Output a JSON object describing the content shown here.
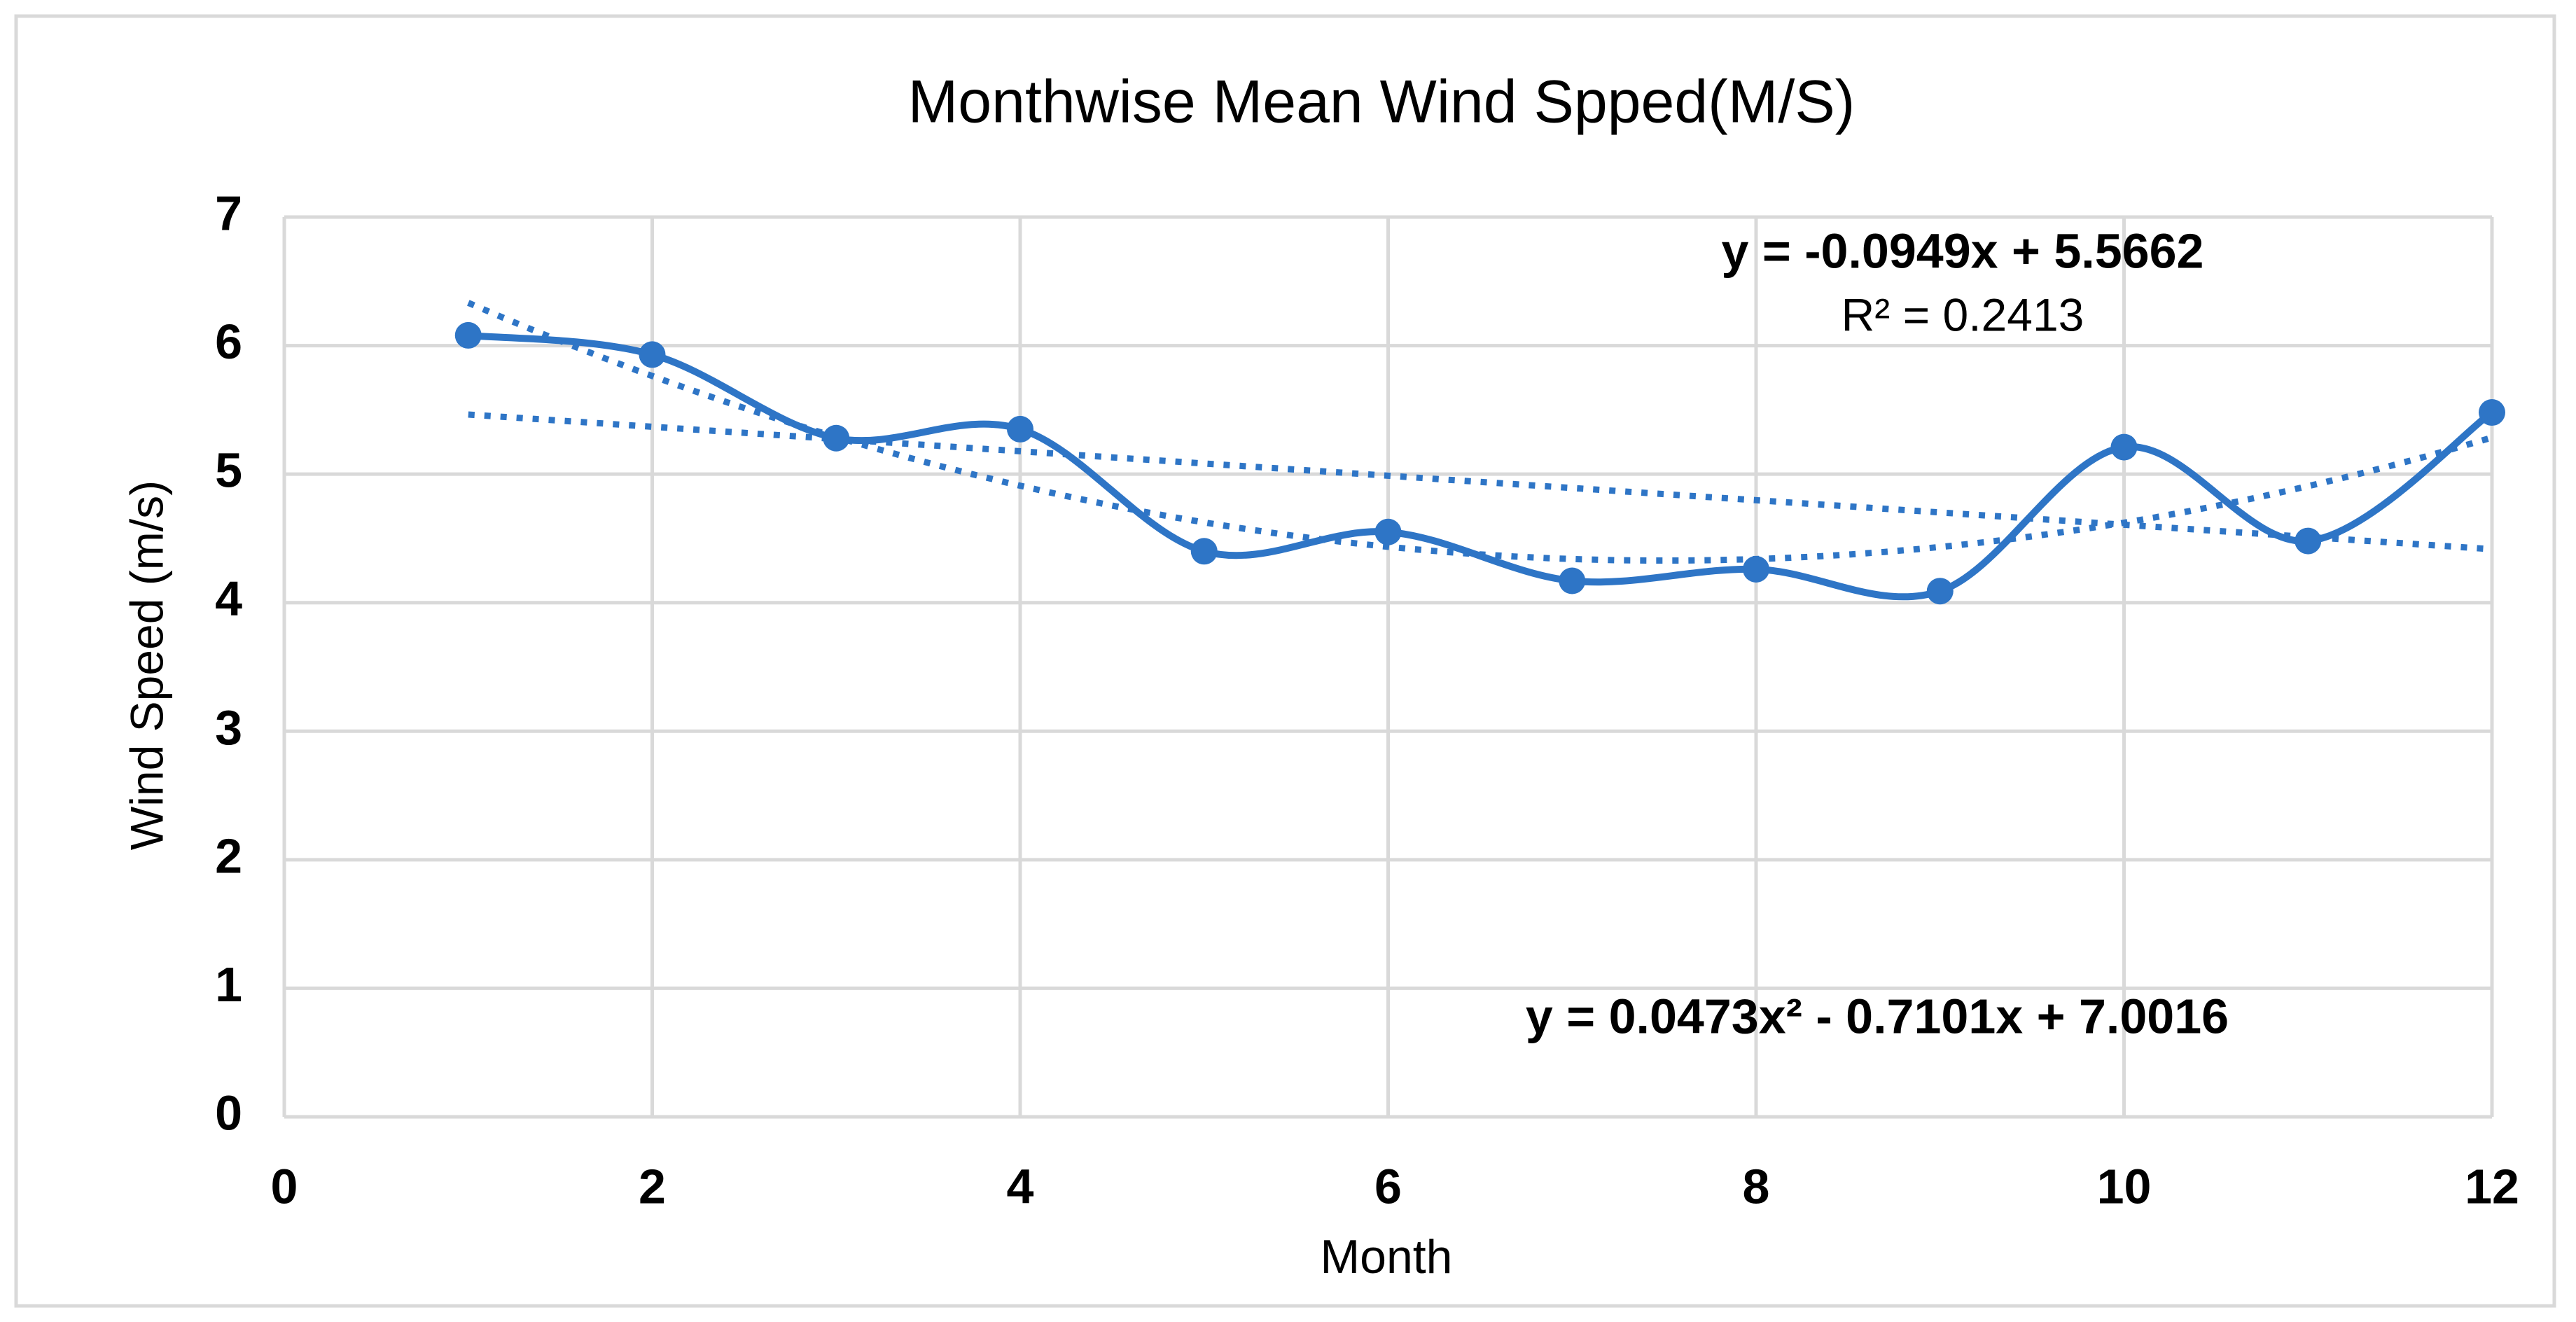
{
  "chart_data": {
    "type": "scatter-smooth",
    "title": "Monthwise Mean Wind Spped(M/S)",
    "x_label": "Month",
    "y_label": "Wind Speed (m/s)",
    "x": [
      1,
      2,
      3,
      4,
      5,
      6,
      7,
      8,
      9,
      10,
      11,
      12
    ],
    "series": [
      {
        "color": "#2e75c6",
        "values": [
          6.08,
          5.93,
          5.28,
          5.35,
          4.4,
          4.55,
          4.17,
          4.26,
          4.09,
          5.21,
          4.48,
          5.48
        ]
      }
    ],
    "trendlines": [
      {
        "type": "linear",
        "order": 1
      },
      {
        "type": "polynomial",
        "order": 2
      }
    ],
    "annotations": [
      "y = -0.0949x + 5.5662",
      "R² = 0.2413",
      "y = 0.0473x² - 0.7101x + 7.0016"
    ],
    "xlim": [
      0,
      12
    ],
    "xticks": [
      0,
      2,
      4,
      6,
      8,
      10,
      12
    ],
    "ylim": [
      0,
      7
    ],
    "yticks": [
      0,
      1,
      2,
      3,
      4,
      5,
      6,
      7
    ],
    "grid": true
  }
}
